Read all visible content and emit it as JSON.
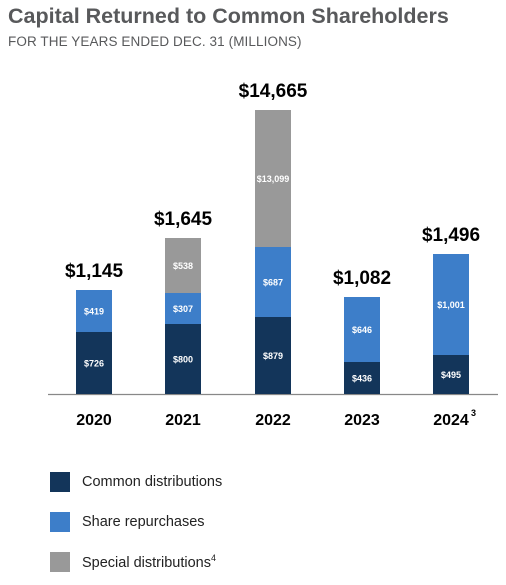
{
  "header": {
    "title": "Capital Returned to Common Shareholders",
    "subtitle": "FOR THE YEARS ENDED DEC. 31 (MILLIONS)"
  },
  "colors": {
    "common": "#13355a",
    "repurchase": "#3d7ec9",
    "special": "#999999",
    "axis": "#888888"
  },
  "chart_data": {
    "type": "bar",
    "stacked": true,
    "categories": [
      "2020",
      "2021",
      "2022",
      "2023",
      "2024"
    ],
    "category_notes": [
      "",
      "",
      "",
      "",
      "3"
    ],
    "totals": [
      "$1,145",
      "$1,645",
      "$14,665",
      "$1,082",
      "$1,496"
    ],
    "series": [
      {
        "name": "Common distributions",
        "key": "common",
        "values": [
          726,
          800,
          879,
          436,
          495
        ],
        "labels": [
          "$726",
          "$800",
          "$879",
          "$436",
          "$495"
        ]
      },
      {
        "name": "Share repurchases",
        "key": "repurchase",
        "values": [
          419,
          307,
          687,
          646,
          1001
        ],
        "labels": [
          "$419",
          "$307",
          "$687",
          "$646",
          "$1,001"
        ]
      },
      {
        "name": "Special distributions",
        "key": "special",
        "values": [
          0,
          538,
          13099,
          0,
          0
        ],
        "labels": [
          "",
          "$538",
          "$13,099",
          "",
          ""
        ]
      }
    ],
    "xlabel": "",
    "ylabel": ""
  },
  "legend": {
    "items": [
      {
        "label": "Common distributions",
        "key": "common",
        "note": ""
      },
      {
        "label": "Share repurchases",
        "key": "repurchase",
        "note": ""
      },
      {
        "label": "Special distributions",
        "key": "special",
        "note": "4"
      }
    ]
  }
}
